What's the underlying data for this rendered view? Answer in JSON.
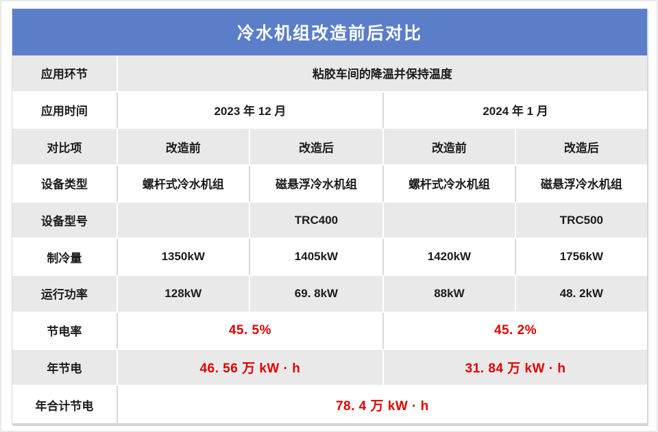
{
  "title": "冷水机组改造前后对比",
  "colors": {
    "header_bg": "#5b7ec8",
    "band_row_bg": "#e9e9e9",
    "plain_row_bg": "#ffffff",
    "highlight_red": "#e10000",
    "text": "#1b1b1b",
    "grid_border": "#d9d9d9"
  },
  "table": {
    "rows": [
      {
        "label": "应用环节",
        "band": true,
        "cells": [
          {
            "text": "粘胶车间的降温并保持温度",
            "span": 4
          }
        ]
      },
      {
        "label": "应用时间",
        "band": false,
        "cells": [
          {
            "text": "2023 年 12 月",
            "span": 2
          },
          {
            "text": "2024 年 1 月",
            "span": 2
          }
        ]
      },
      {
        "label": "对比项",
        "band": true,
        "cells": [
          {
            "text": "改造前"
          },
          {
            "text": "改造后"
          },
          {
            "text": "改造前"
          },
          {
            "text": "改造后"
          }
        ]
      },
      {
        "label": "设备类型",
        "band": false,
        "cells": [
          {
            "text": "螺杆式冷水机组"
          },
          {
            "text": "磁悬浮冷水机组"
          },
          {
            "text": "螺杆式冷水机组"
          },
          {
            "text": "磁悬浮冷水机组"
          }
        ]
      },
      {
        "label": "设备型号",
        "band": true,
        "cells": [
          {
            "text": ""
          },
          {
            "text": "TRC400"
          },
          {
            "text": ""
          },
          {
            "text": "TRC500"
          }
        ]
      },
      {
        "label": "制冷量",
        "band": false,
        "cells": [
          {
            "text": "1350kW"
          },
          {
            "text": "1405kW"
          },
          {
            "text": "1420kW"
          },
          {
            "text": "1756kW"
          }
        ]
      },
      {
        "label": "运行功率",
        "band": true,
        "cells": [
          {
            "text": "128kW"
          },
          {
            "text": "69. 8kW"
          },
          {
            "text": "88kW"
          },
          {
            "text": "48. 2kW"
          }
        ]
      },
      {
        "label": "节电率",
        "band": false,
        "cells": [
          {
            "text": "45. 5%",
            "span": 2,
            "red": true
          },
          {
            "text": "45. 2%",
            "span": 2,
            "red": true
          }
        ]
      },
      {
        "label": "年节电",
        "band": true,
        "cells": [
          {
            "text": "46. 56 万 kW · h",
            "span": 2,
            "red": true
          },
          {
            "text": "31. 84 万 kW · h",
            "span": 2,
            "red": true
          }
        ]
      },
      {
        "label": "年合计节电",
        "band": false,
        "cells": [
          {
            "text": "78. 4 万 kW · h",
            "span": 4,
            "red": true
          }
        ]
      }
    ]
  },
  "chart_data": {
    "type": "table",
    "title": "冷水机组改造前后对比",
    "columns": [
      "对比项",
      "2023年12月 改造前",
      "2023年12月 改造后",
      "2024年1月 改造前",
      "2024年1月 改造后"
    ],
    "rows": [
      [
        "应用环节",
        "粘胶车间的降温并保持温度",
        "",
        "",
        ""
      ],
      [
        "应用时间",
        "2023年12月",
        "2023年12月",
        "2024年1月",
        "2024年1月"
      ],
      [
        "设备类型",
        "螺杆式冷水机组",
        "磁悬浮冷水机组",
        "螺杆式冷水机组",
        "磁悬浮冷水机组"
      ],
      [
        "设备型号",
        "",
        "TRC400",
        "",
        "TRC500"
      ],
      [
        "制冷量",
        "1350kW",
        "1405kW",
        "1420kW",
        "1756kW"
      ],
      [
        "运行功率",
        "128kW",
        "69.8kW",
        "88kW",
        "48.2kW"
      ],
      [
        "节电率",
        "45.5%",
        "45.5%",
        "45.2%",
        "45.2%"
      ],
      [
        "年节电",
        "46.56万kW·h",
        "46.56万kW·h",
        "31.84万kW·h",
        "31.84万kW·h"
      ],
      [
        "年合计节电",
        "78.4万kW·h",
        "",
        "",
        ""
      ]
    ]
  }
}
